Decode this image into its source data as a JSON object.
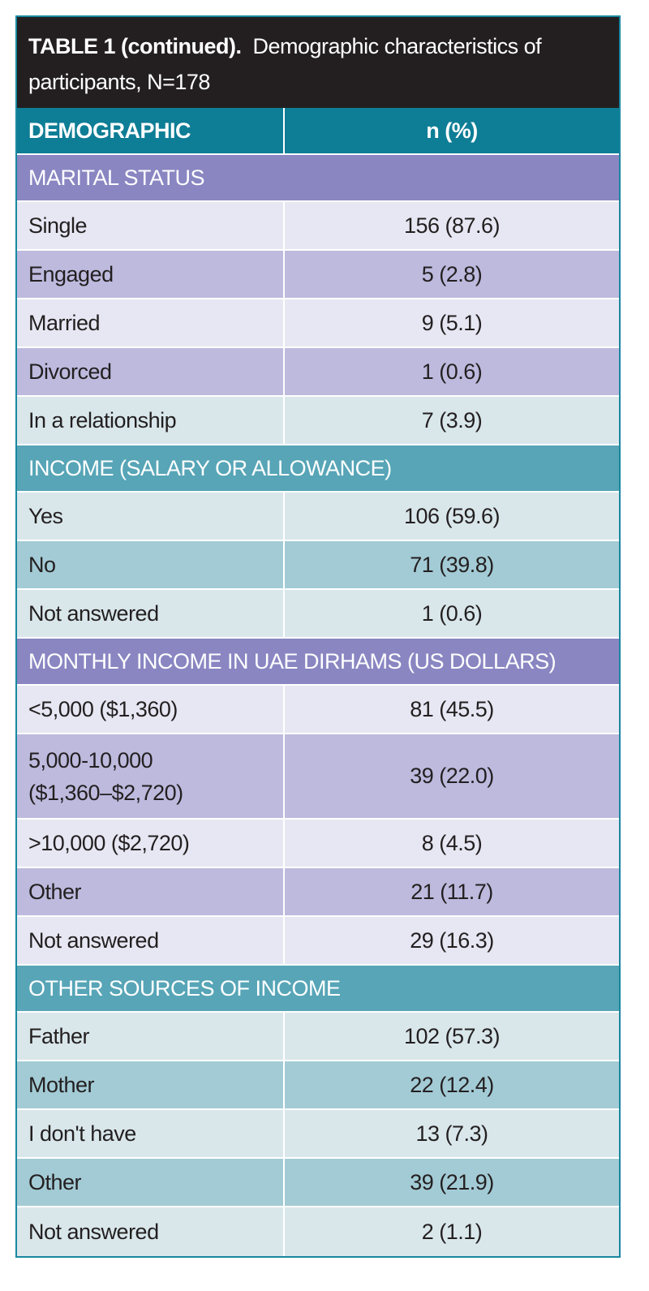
{
  "title": {
    "bold": "TABLE 1 (continued).",
    "text": "Demographic characteristics of participants, N=178"
  },
  "header": {
    "demographic": "DEMOGRAPHIC",
    "n_pct": "n (%)"
  },
  "sections": {
    "marital": {
      "label": "MARITAL STATUS",
      "rows": [
        {
          "label": "Single",
          "value": "156 (87.6)"
        },
        {
          "label": "Engaged",
          "value": "5 (2.8)"
        },
        {
          "label": "Married",
          "value": "9 (5.1)"
        },
        {
          "label": "Divorced",
          "value": "1 (0.6)"
        },
        {
          "label": "In a relationship",
          "value": "7 (3.9)"
        }
      ]
    },
    "income": {
      "label": "INCOME (SALARY OR ALLOWANCE)",
      "rows": [
        {
          "label": "Yes",
          "value": "106 (59.6)"
        },
        {
          "label": "No",
          "value": "71 (39.8)"
        },
        {
          "label": "Not answered",
          "value": "1 (0.6)"
        }
      ]
    },
    "monthly": {
      "label": "MONTHLY INCOME IN UAE DIRHAMS  (US DOLLARS)",
      "rows": [
        {
          "label": "<5,000 ($1,360)",
          "value": "81 (45.5)"
        },
        {
          "label": "5,000-10,000",
          "label2": "($1,360–$2,720)",
          "value": "39 (22.0)"
        },
        {
          "label": ">10,000 ($2,720)",
          "value": "8 (4.5)"
        },
        {
          "label": "Other",
          "value": "21 (11.7)"
        },
        {
          "label": "Not answered",
          "value": "29 (16.3)"
        }
      ]
    },
    "other": {
      "label": "OTHER SOURCES OF INCOME",
      "rows": [
        {
          "label": "Father",
          "value": "102 (57.3)"
        },
        {
          "label": "Mother",
          "value": "22 (12.4)"
        },
        {
          "label": "I don't have",
          "value": "13 (7.3)"
        },
        {
          "label": "Other",
          "value": "39 (21.9)"
        },
        {
          "label": "Not answered",
          "value": "2 (1.1)"
        }
      ]
    }
  },
  "colors": {
    "header_teal": "#0e7d96",
    "section_purple": "#8986c2",
    "section_teal": "#57a5b7",
    "row_lavender": "#e7e7f3",
    "row_purple": "#bdbade",
    "row_light_teal": "#d9e7eb",
    "row_teal": "#a3cbd5"
  }
}
